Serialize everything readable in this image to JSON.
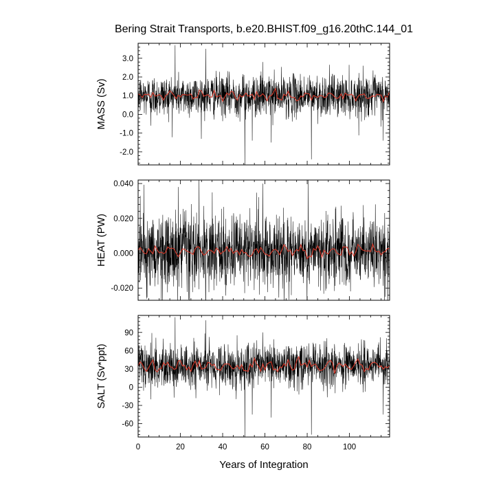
{
  "figure": {
    "title": "Bering Strait Transports, b.e20.BHIST.f09_g16.20thC.144_01",
    "xlabel": "Years of Integration"
  },
  "colors": {
    "raw_series": "#000000",
    "smoothed_series": "#d93a2b",
    "axes": "#000000",
    "background": "#ffffff"
  },
  "chart_data": [
    {
      "type": "line",
      "ylabel": "MASS (Sv)",
      "xlim": [
        0,
        119
      ],
      "ylim": [
        -2.7,
        3.8
      ],
      "xticks": [
        0,
        20,
        40,
        60,
        80,
        100
      ],
      "xtick_labels": [
        "0",
        "20",
        "40",
        "60",
        "80",
        "100"
      ],
      "yticks": [
        -2.0,
        -1.0,
        0.0,
        1.0,
        2.0,
        3.0
      ],
      "ytick_labels": [
        "-2.0",
        "-1.0",
        "0.0",
        "1.0",
        "2.0",
        "3.0"
      ],
      "show_xtick_labels": false,
      "series": [
        {
          "style": "monthly-raw",
          "mean": 1.0,
          "std": 0.55,
          "spikes": [
            [
              17.5,
              3.7
            ],
            [
              32,
              3.5
            ],
            [
              50.5,
              -2.7
            ],
            [
              59,
              2.8
            ],
            [
              82,
              -2.4
            ],
            [
              54,
              -1.4
            ],
            [
              63,
              -1.5
            ],
            [
              116,
              -1.4
            ],
            [
              6,
              -0.6
            ]
          ]
        },
        {
          "style": "annual-smoothed",
          "mean": 1.0,
          "amplitude": 0.18
        }
      ]
    },
    {
      "type": "line",
      "ylabel": "HEAT (PW)",
      "xlim": [
        0,
        119
      ],
      "ylim": [
        -0.027,
        0.042
      ],
      "xticks": [
        0,
        20,
        40,
        60,
        80,
        100
      ],
      "xtick_labels": [
        "0",
        "20",
        "40",
        "60",
        "80",
        "100"
      ],
      "yticks": [
        -0.02,
        0.0,
        0.02,
        0.04
      ],
      "ytick_labels": [
        "-0.020",
        "0.000",
        "0.020",
        "0.040"
      ],
      "show_xtick_labels": false,
      "series": [
        {
          "style": "monthly-raw",
          "mean": 0.0005,
          "std": 0.011,
          "spikes": [
            [
              32,
              -0.027
            ],
            [
              59,
              0.04
            ],
            [
              80.5,
              0.042
            ],
            [
              19,
              0.038
            ],
            [
              1,
              0.033
            ],
            [
              117,
              -0.025
            ]
          ]
        },
        {
          "style": "annual-smoothed",
          "mean": 0.001,
          "amplitude": 0.0022
        }
      ]
    },
    {
      "type": "line",
      "ylabel": "SALT (Sv*ppt)",
      "xlim": [
        0,
        119
      ],
      "ylim": [
        -82,
        118
      ],
      "xticks": [
        0,
        20,
        40,
        60,
        80,
        100
      ],
      "xtick_labels": [
        "0",
        "20",
        "40",
        "60",
        "80",
        "100"
      ],
      "yticks": [
        -60,
        -30,
        0,
        30,
        60,
        90
      ],
      "ytick_labels": [
        "-60",
        "-30",
        "0",
        "30",
        "60",
        "90"
      ],
      "show_xtick_labels": true,
      "series": [
        {
          "style": "monthly-raw",
          "mean": 35,
          "std": 18,
          "spikes": [
            [
              17.5,
              115
            ],
            [
              32,
              110
            ],
            [
              50.5,
              -82
            ],
            [
              59,
              90
            ],
            [
              82,
              -78
            ],
            [
              54,
              -45
            ],
            [
              63,
              -50
            ],
            [
              116,
              -45
            ],
            [
              6,
              -20
            ]
          ]
        },
        {
          "style": "annual-smoothed",
          "mean": 35,
          "amplitude": 6
        }
      ]
    }
  ]
}
